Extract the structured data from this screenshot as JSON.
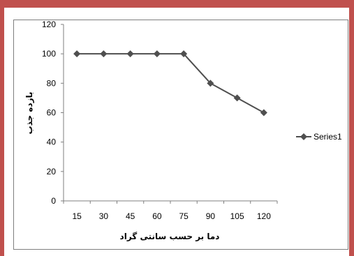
{
  "chart_data": {
    "type": "line",
    "title": "",
    "xlabel": "دما بر حسب سانتی گراد",
    "ylabel": "بازده جذب",
    "categories": [
      "15",
      "30",
      "45",
      "60",
      "75",
      "90",
      "105",
      "120"
    ],
    "series": [
      {
        "name": "Series1",
        "values": [
          100,
          100,
          100,
          100,
          100,
          80,
          70,
          60
        ],
        "color": "#4f4f4f",
        "marker": "diamond"
      }
    ],
    "ylim": [
      0,
      120
    ],
    "yticks": [
      0,
      20,
      40,
      60,
      80,
      100,
      120
    ],
    "grid": false,
    "legend": "right"
  },
  "colors": {
    "frame": "#c0504d",
    "line": "#4f4f4f",
    "axis": "#7f7f7f"
  }
}
